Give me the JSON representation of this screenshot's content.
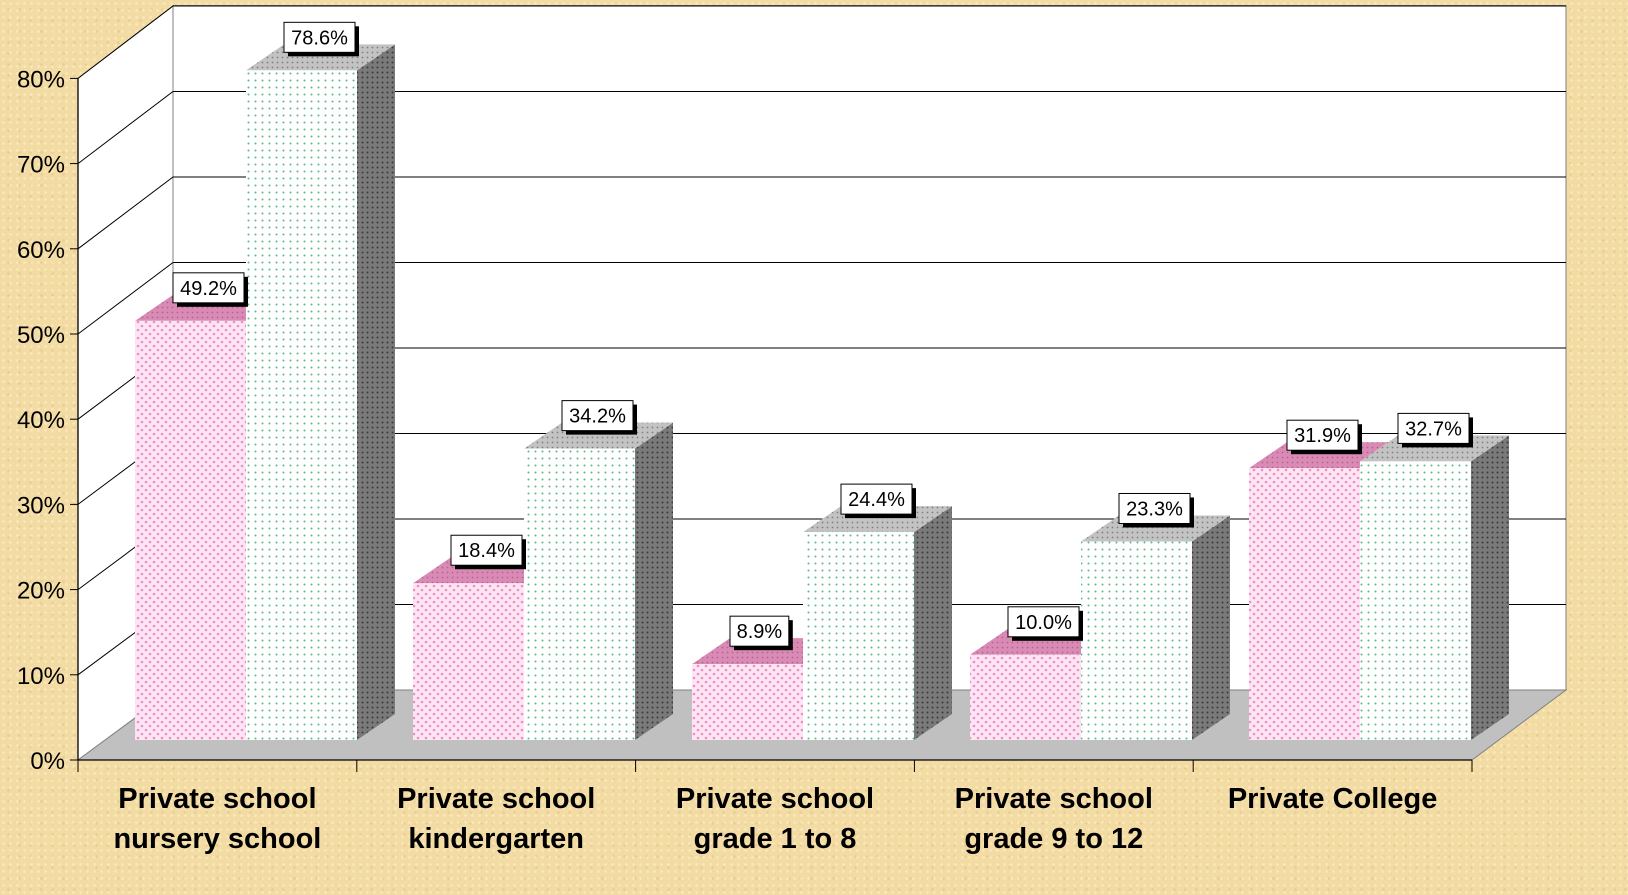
{
  "chart_data": {
    "type": "bar",
    "title": "",
    "xlabel": "",
    "ylabel": "",
    "ylim": [
      0,
      80
    ],
    "yticks": [
      "0%",
      "10%",
      "20%",
      "30%",
      "40%",
      "50%",
      "60%",
      "70%",
      "80%"
    ],
    "grid": true,
    "legend": "none",
    "categories": [
      [
        "Private school",
        "nursery school"
      ],
      [
        "Private school",
        "kindergarten"
      ],
      [
        "Private school",
        "grade 1 to 8"
      ],
      [
        "Private school",
        "grade 9 to 12"
      ],
      [
        "Private College"
      ]
    ],
    "series": [
      {
        "values": [
          49.2,
          18.4,
          8.9,
          10.0,
          31.9
        ],
        "labels": [
          "49.2%",
          "18.4%",
          "8.9%",
          "10.0%",
          "31.9%"
        ],
        "color": "#f7b5dc"
      },
      {
        "values": [
          78.6,
          34.2,
          24.4,
          23.3,
          32.7
        ],
        "labels": [
          "78.6%",
          "34.2%",
          "24.4%",
          "23.3%",
          "32.7%"
        ],
        "color": "#6fc79a"
      }
    ],
    "colors": {
      "background": "#f3dba4",
      "plot_wall": "#ffffff",
      "floor": "#c0c0c0",
      "series1_face": "#fde6f3",
      "series1_dot": "#f08cc6",
      "series2_face": "#ffffff",
      "series2_dot": "#59b889",
      "side_dark": "#7a7a7a"
    }
  }
}
